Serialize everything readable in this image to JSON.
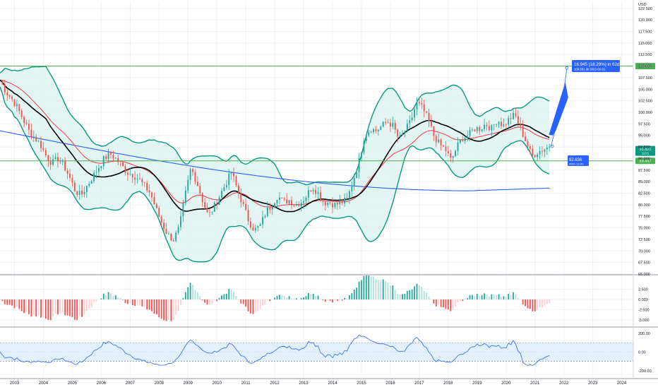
{
  "currency_label": "USD",
  "chart_data": [
    {
      "type": "candlestick",
      "panel": "price",
      "title": "",
      "x_range": [
        2002.5,
        2024.4
      ],
      "ylim": [
        65.0,
        124.0
      ],
      "y_ticks": [
        "65.000",
        "67.500",
        "70.000",
        "72.500",
        "75.000",
        "77.500",
        "80.000",
        "82.500",
        "85.000",
        "87.500",
        "90.000",
        "92.500",
        "95.000",
        "97.500",
        "100.000",
        "102.500",
        "105.000",
        "107.500",
        "110.000",
        "112.500",
        "115.000",
        "117.500",
        "120.000",
        "122.500"
      ],
      "x_ticks": [
        "2003",
        "2004",
        "2005",
        "2006",
        "2007",
        "2008",
        "2009",
        "2010",
        "2011",
        "2012",
        "2013",
        "2014",
        "2015",
        "2016",
        "2017",
        "2018",
        "2019",
        "2020",
        "2021",
        "2022",
        "2023",
        "2024"
      ],
      "close_anchors": [
        [
          2002.5,
          107.0
        ],
        [
          2002.7,
          104.5
        ],
        [
          2002.9,
          103.0
        ],
        [
          2003.1,
          101.0
        ],
        [
          2003.3,
          98.5
        ],
        [
          2003.5,
          96.0
        ],
        [
          2003.7,
          94.5
        ],
        [
          2003.9,
          93.0
        ],
        [
          2004.1,
          90.5
        ],
        [
          2004.3,
          89.0
        ],
        [
          2004.5,
          90.0
        ],
        [
          2004.7,
          88.5
        ],
        [
          2004.9,
          86.0
        ],
        [
          2005.1,
          83.0
        ],
        [
          2005.3,
          82.0
        ],
        [
          2005.5,
          84.0
        ],
        [
          2005.7,
          86.0
        ],
        [
          2005.9,
          88.0
        ],
        [
          2006.1,
          90.0
        ],
        [
          2006.3,
          91.0
        ],
        [
          2006.5,
          90.0
        ],
        [
          2006.7,
          88.5
        ],
        [
          2006.9,
          87.0
        ],
        [
          2007.1,
          86.5
        ],
        [
          2007.3,
          85.5
        ],
        [
          2007.5,
          84.0
        ],
        [
          2007.7,
          82.5
        ],
        [
          2007.9,
          79.0
        ],
        [
          2008.1,
          76.0
        ],
        [
          2008.3,
          73.5
        ],
        [
          2008.5,
          72.5
        ],
        [
          2008.7,
          75.0
        ],
        [
          2008.9,
          82.0
        ],
        [
          2009.1,
          88.0
        ],
        [
          2009.3,
          85.0
        ],
        [
          2009.5,
          81.0
        ],
        [
          2009.7,
          77.5
        ],
        [
          2009.9,
          79.5
        ],
        [
          2010.1,
          82.0
        ],
        [
          2010.3,
          84.5
        ],
        [
          2010.5,
          87.0
        ],
        [
          2010.7,
          83.5
        ],
        [
          2010.9,
          80.0
        ],
        [
          2011.1,
          76.5
        ],
        [
          2011.3,
          74.5
        ],
        [
          2011.5,
          75.5
        ],
        [
          2011.7,
          78.5
        ],
        [
          2011.9,
          80.0
        ],
        [
          2012.1,
          82.0
        ],
        [
          2012.3,
          80.5
        ],
        [
          2012.5,
          81.0
        ],
        [
          2012.7,
          80.0
        ],
        [
          2012.9,
          80.5
        ],
        [
          2013.1,
          82.0
        ],
        [
          2013.3,
          84.0
        ],
        [
          2013.5,
          82.5
        ],
        [
          2013.7,
          80.5
        ],
        [
          2013.9,
          80.5
        ],
        [
          2014.1,
          80.0
        ],
        [
          2014.3,
          80.5
        ],
        [
          2014.5,
          81.0
        ],
        [
          2014.7,
          85.0
        ],
        [
          2014.9,
          89.0
        ],
        [
          2015.1,
          95.0
        ],
        [
          2015.3,
          96.5
        ],
        [
          2015.5,
          96.0
        ],
        [
          2015.7,
          97.0
        ],
        [
          2015.9,
          98.0
        ],
        [
          2016.1,
          97.0
        ],
        [
          2016.3,
          94.0
        ],
        [
          2016.5,
          96.0
        ],
        [
          2016.7,
          98.0
        ],
        [
          2016.9,
          102.0
        ],
        [
          2017.1,
          101.0
        ],
        [
          2017.3,
          98.5
        ],
        [
          2017.5,
          95.0
        ],
        [
          2017.7,
          93.0
        ],
        [
          2017.9,
          92.0
        ],
        [
          2018.1,
          89.5
        ],
        [
          2018.3,
          92.5
        ],
        [
          2018.5,
          94.5
        ],
        [
          2018.7,
          95.0
        ],
        [
          2018.9,
          96.5
        ],
        [
          2019.1,
          96.5
        ],
        [
          2019.3,
          97.5
        ],
        [
          2019.5,
          96.5
        ],
        [
          2019.7,
          98.5
        ],
        [
          2019.9,
          97.0
        ],
        [
          2020.1,
          98.5
        ],
        [
          2020.3,
          99.5
        ],
        [
          2020.5,
          96.5
        ],
        [
          2020.7,
          93.5
        ],
        [
          2020.9,
          90.5
        ],
        [
          2021.1,
          91.5
        ],
        [
          2021.3,
          92.0
        ],
        [
          2021.5,
          92.6
        ]
      ],
      "overlays": [
        {
          "kind": "sma_20",
          "color": "#000000"
        },
        {
          "kind": "ema_50",
          "color": "#f23645"
        },
        {
          "kind": "sma_200",
          "color": "#2962ff"
        },
        {
          "kind": "bollinger_bands_20_2",
          "color": "#089981",
          "fill": "#d9f2ef"
        }
      ],
      "horizontal_lines": [
        {
          "value": 110.0,
          "label": "110.002",
          "color": "#4caf50"
        },
        {
          "value": 89.5,
          "label": "89.497",
          "color": "#4caf50"
        }
      ],
      "last_price_label": {
        "value": 91.5,
        "label": "91.821",
        "sub": "113:1",
        "color": "#089981"
      },
      "annotation": {
        "text": "16.945 (18.29%) in 62d",
        "subtext": "109.581 @ 2022-02-01",
        "target_value": 109.6,
        "from_value": 92.636,
        "from_label": "92.636",
        "from_date": "2021-12-01"
      }
    },
    {
      "type": "histogram",
      "panel": "momentum",
      "ylim": [
        -6.5,
        5.8
      ],
      "y_ticks": [
        "-5.000",
        "-2.500",
        "0.000",
        "2.500"
      ],
      "zero": 0,
      "colors": {
        "positive": "#26a69a",
        "negative": "#ef5350",
        "pos_light": "#b2dfdb",
        "neg_light": "#ffcdd2"
      }
    },
    {
      "type": "line",
      "panel": "oscillator",
      "ylim": [
        -270,
        260
      ],
      "y_ticks": [
        "-200.00",
        "0.00",
        "200.00"
      ],
      "band": [
        -100,
        100
      ],
      "line_color": "#2962ff",
      "band_color": "#e3f0fd"
    }
  ]
}
